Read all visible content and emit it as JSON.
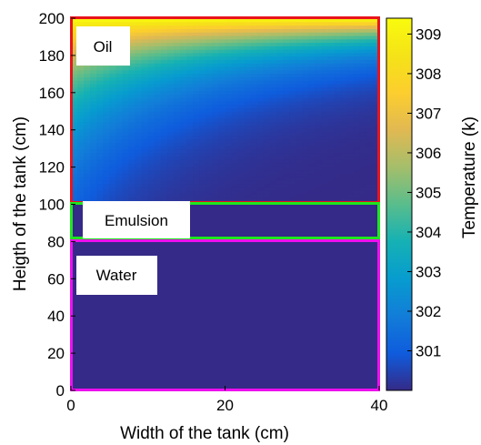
{
  "chart_data": {
    "type": "heatmap",
    "title": "",
    "xlabel": "Width of the tank (cm)",
    "ylabel": "Heigth of the tank (cm)",
    "xlim": [
      0,
      40
    ],
    "ylim": [
      0,
      200
    ],
    "x_ticks": [
      0,
      20,
      40
    ],
    "y_ticks": [
      0,
      20,
      40,
      60,
      80,
      100,
      120,
      140,
      160,
      180,
      200
    ],
    "colorbar": {
      "label": "Temperature (k)",
      "range": [
        300.0,
        309.4
      ],
      "ticks": [
        301,
        302,
        303,
        304,
        305,
        306,
        307,
        308,
        309
      ],
      "colormap": "parula"
    },
    "regions": [
      {
        "name": "Oil",
        "y_range": [
          100,
          200
        ],
        "border_color": "#e8141c"
      },
      {
        "name": "Emulsion",
        "y_range": [
          80,
          100
        ],
        "border_color": "#1ee61e"
      },
      {
        "name": "Water",
        "y_range": [
          0,
          80
        ],
        "border_color": "#ee10ee"
      }
    ],
    "temperature_field": {
      "description": "",
      "max_temperature": 309.4,
      "min_temperature": 300.0
    }
  }
}
